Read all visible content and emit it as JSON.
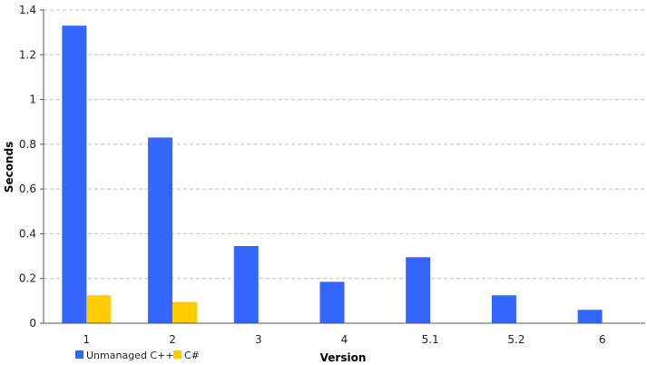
{
  "chart_data": {
    "type": "bar",
    "title": "",
    "xlabel": "Version",
    "ylabel": "Seconds",
    "categories": [
      "1",
      "2",
      "3",
      "4",
      "5.1",
      "5.2",
      "6"
    ],
    "series": [
      {
        "name": "Unmanaged C++",
        "color": "#3366ff",
        "values": [
          1.33,
          0.83,
          0.345,
          0.185,
          0.295,
          0.125,
          0.06
        ]
      },
      {
        "name": "C#",
        "color": "#ffcc00",
        "values": [
          0.125,
          0.095,
          null,
          null,
          null,
          null,
          null
        ]
      }
    ],
    "ylim": [
      0,
      1.4
    ],
    "yticks": [
      "0",
      "0.2",
      "0.4",
      "0.6",
      "0.8",
      "1",
      "1.2",
      "1.4"
    ],
    "grid": true,
    "legend_position": "bottom-left"
  }
}
